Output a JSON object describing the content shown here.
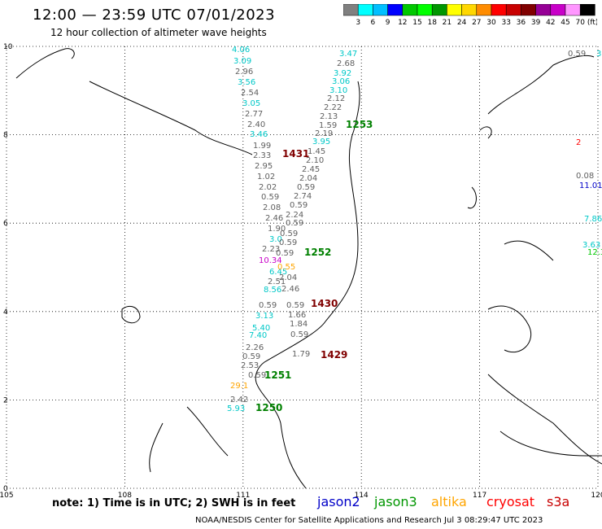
{
  "title": "12:00 — 23:59 UTC 07/01/2023",
  "subtitle": "12 hour collection of altimeter wave heights",
  "legend": {
    "unit": "(ft)",
    "colors": [
      "#808080",
      "#00ffff",
      "#00bfff",
      "#0000ff",
      "#00c800",
      "#00ff00",
      "#009600",
      "#ffff00",
      "#ffd700",
      "#ff8c00",
      "#ff0000",
      "#c80000",
      "#800000",
      "#960096",
      "#c800c8",
      "#ff96ff",
      "#000000"
    ],
    "labels": [
      "3",
      "6",
      "9",
      "12",
      "15",
      "18",
      "21",
      "24",
      "27",
      "30",
      "33",
      "36",
      "39",
      "42",
      "45",
      "70"
    ]
  },
  "axes": {
    "x_ticks": [
      "105",
      "108",
      "111",
      "114",
      "117",
      "120"
    ],
    "y_ticks": [
      "0",
      "2",
      "4",
      "6",
      "8",
      "10"
    ]
  },
  "passes": [
    {
      "label": "1253",
      "color": "#008000"
    },
    {
      "label": "1431",
      "color": "#800000"
    },
    {
      "label": "1252",
      "color": "#008000"
    },
    {
      "label": "1430",
      "color": "#800000"
    },
    {
      "label": "1429",
      "color": "#800000"
    },
    {
      "label": "1251",
      "color": "#008000"
    },
    {
      "label": "1250",
      "color": "#008000"
    }
  ],
  "wave_values": [
    {
      "v": "4.06",
      "c": "#00c8c8"
    },
    {
      "v": "3.09",
      "c": "#00c8c8"
    },
    {
      "v": "2.96",
      "c": "#606060"
    },
    {
      "v": "3.56",
      "c": "#00c8c8"
    },
    {
      "v": "2.54",
      "c": "#606060"
    },
    {
      "v": "3.05",
      "c": "#00c8c8"
    },
    {
      "v": "2.77",
      "c": "#606060"
    },
    {
      "v": "2.40",
      "c": "#606060"
    },
    {
      "v": "3.46",
      "c": "#00c8c8"
    },
    {
      "v": "1.99",
      "c": "#606060"
    },
    {
      "v": "2.33",
      "c": "#606060"
    },
    {
      "v": "2.95",
      "c": "#606060"
    },
    {
      "v": "1.02",
      "c": "#606060"
    },
    {
      "v": "2.02",
      "c": "#606060"
    },
    {
      "v": "0.59",
      "c": "#606060"
    },
    {
      "v": "2.08",
      "c": "#606060"
    },
    {
      "v": "2.46",
      "c": "#606060"
    },
    {
      "v": "1.90",
      "c": "#606060"
    },
    {
      "v": "3.0",
      "c": "#00c8c8"
    },
    {
      "v": "2.23",
      "c": "#606060"
    },
    {
      "v": "10.34",
      "c": "#c800c8"
    },
    {
      "v": "6.45",
      "c": "#00c8c8"
    },
    {
      "v": "2.51",
      "c": "#606060"
    },
    {
      "v": "8.56",
      "c": "#00c8c8"
    },
    {
      "v": "0.59",
      "c": "#606060"
    },
    {
      "v": "3.13",
      "c": "#00c8c8"
    },
    {
      "v": "5.40",
      "c": "#00c8c8"
    },
    {
      "v": "7.40",
      "c": "#00c8c8"
    },
    {
      "v": "2.26",
      "c": "#606060"
    },
    {
      "v": "0.59",
      "c": "#606060"
    },
    {
      "v": "2.53",
      "c": "#606060"
    },
    {
      "v": "0.59",
      "c": "#606060"
    },
    {
      "v": "29.1",
      "c": "#ffa500"
    },
    {
      "v": "2.42",
      "c": "#606060"
    },
    {
      "v": "5.93",
      "c": "#00c8c8"
    },
    {
      "v": "3.47",
      "c": "#00c8c8"
    },
    {
      "v": "2.68",
      "c": "#606060"
    },
    {
      "v": "3.92",
      "c": "#00c8c8"
    },
    {
      "v": "3.06",
      "c": "#00c8c8"
    },
    {
      "v": "3.10",
      "c": "#00c8c8"
    },
    {
      "v": "2.12",
      "c": "#606060"
    },
    {
      "v": "2.22",
      "c": "#606060"
    },
    {
      "v": "2.13",
      "c": "#606060"
    },
    {
      "v": "1.59",
      "c": "#606060"
    },
    {
      "v": "2.19",
      "c": "#606060"
    },
    {
      "v": "3.95",
      "c": "#00c8c8"
    },
    {
      "v": "1.45",
      "c": "#606060"
    },
    {
      "v": "2.10",
      "c": "#606060"
    },
    {
      "v": "2.45",
      "c": "#606060"
    },
    {
      "v": "2.04",
      "c": "#606060"
    },
    {
      "v": "0.59",
      "c": "#606060"
    },
    {
      "v": "2.74",
      "c": "#606060"
    },
    {
      "v": "0.59",
      "c": "#606060"
    },
    {
      "v": "2.24",
      "c": "#606060"
    },
    {
      "v": "0.59",
      "c": "#606060"
    },
    {
      "v": "0.59",
      "c": "#606060"
    },
    {
      "v": "0.59",
      "c": "#606060"
    },
    {
      "v": "0.59",
      "c": "#606060"
    },
    {
      "v": "0.55",
      "c": "#ffa500"
    },
    {
      "v": "2.04",
      "c": "#606060"
    },
    {
      "v": "2.46",
      "c": "#606060"
    },
    {
      "v": "0.59",
      "c": "#606060"
    },
    {
      "v": "1.66",
      "c": "#606060"
    },
    {
      "v": "1.84",
      "c": "#606060"
    },
    {
      "v": "0.59",
      "c": "#606060"
    },
    {
      "v": "1.79",
      "c": "#606060"
    },
    {
      "v": "0.59",
      "c": "#606060"
    },
    {
      "v": "3.03",
      "c": "#00c8c8"
    },
    {
      "v": "2",
      "c": "#ff0000"
    },
    {
      "v": "0.08",
      "c": "#606060"
    },
    {
      "v": "11.01",
      "c": "#0000c8"
    },
    {
      "v": "7.86",
      "c": "#00c8c8"
    },
    {
      "v": "3.63",
      "c": "#00c8c8"
    },
    {
      "v": "12.3",
      "c": "#00c800"
    },
    {
      "v": "7.4",
      "c": "#00c8c8"
    }
  ],
  "note": "note:  1) Time is in UTC;  2) SWH is in feet",
  "satellites": [
    {
      "name": "jason2",
      "color": "#0000c8"
    },
    {
      "name": "jason3",
      "color": "#009600"
    },
    {
      "name": "altika",
      "color": "#ffa500"
    },
    {
      "name": "cryosat",
      "color": "#ff0000"
    },
    {
      "name": "s3a",
      "color": "#c80000"
    }
  ],
  "credit": "NOAA/NESDIS Center for Satellite Applications and Research   Jul  3 08:29:47 UTC 2023"
}
